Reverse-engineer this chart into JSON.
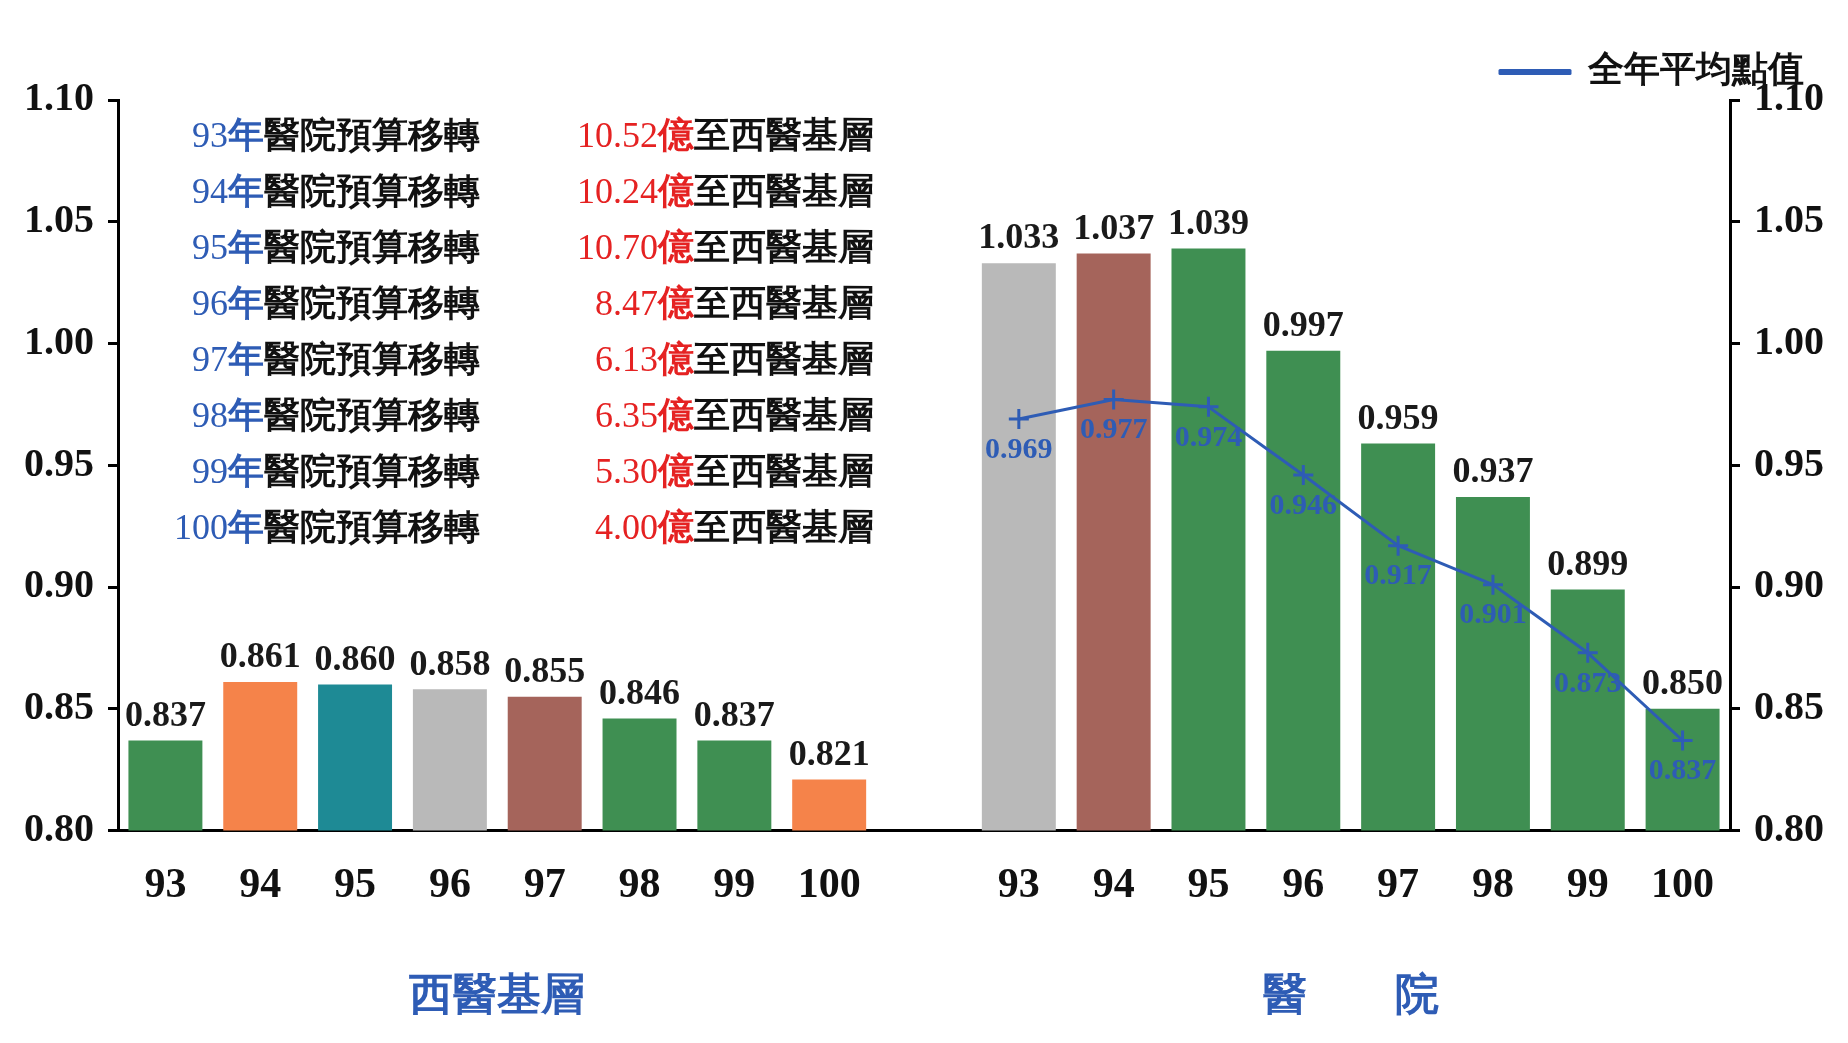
{
  "chart_data": {
    "type": "bar",
    "categories": [
      "93",
      "94",
      "95",
      "96",
      "97",
      "98",
      "99",
      "100",
      null,
      "93",
      "94",
      "95",
      "96",
      "97",
      "98",
      "99",
      "100"
    ],
    "series": [
      {
        "value_labels": [
          "0.837",
          "0.861",
          "0.860",
          "0.858",
          "0.855",
          "0.846",
          "0.837",
          "0.821",
          null,
          "1.033",
          "1.037",
          "1.039",
          "0.997",
          "0.959",
          "0.937",
          "0.899",
          "0.850"
        ],
        "colors": [
          "#3f8f52",
          "#f5834a",
          "#1e8a95",
          "#b9b9b9",
          "#a5645b",
          "#3f8f52",
          "#3f8f52",
          "#f5834a",
          null,
          "#b9b9b9",
          "#a5645b",
          "#3f8f52",
          "#3f8f52",
          "#3f8f52",
          "#3f8f52",
          "#3f8f52",
          "#3f8f52"
        ],
        "values": [
          0.837,
          0.861,
          0.86,
          0.858,
          0.855,
          0.846,
          0.837,
          0.821,
          null,
          1.033,
          1.037,
          1.039,
          0.997,
          0.959,
          0.937,
          0.899,
          0.85
        ]
      },
      {
        "type": "line",
        "name": "全年平均點值",
        "color": "#2e5cb5",
        "value_labels": [
          null,
          null,
          null,
          null,
          null,
          null,
          null,
          null,
          null,
          "0.969",
          "0.977",
          "0.974",
          "0.946",
          "0.917",
          "0.901",
          "0.873",
          "0.837"
        ],
        "values": [
          null,
          null,
          null,
          null,
          null,
          null,
          null,
          null,
          null,
          0.969,
          0.977,
          0.974,
          0.946,
          0.917,
          0.901,
          0.873,
          0.837
        ]
      }
    ],
    "ylim": [
      0.8,
      1.1
    ],
    "yticks": [
      {
        "value": 0.8,
        "label": "0.80"
      },
      0.85,
      {
        "value": 0.9,
        "label": "0.90"
      },
      0.95,
      {
        "value": 1,
        "label": "1.00"
      },
      1.05,
      {
        "value": 1.1,
        "label": "1.10"
      }
    ],
    "y2lim": [
      0.8,
      1.1
    ],
    "y2ticks": [
      {
        "value": 0.8,
        "label": "0.80"
      },
      0.85,
      {
        "value": 0.9,
        "label": "0.90"
      },
      0.95,
      {
        "value": 1,
        "label": "1.00"
      },
      1.05,
      {
        "value": 1.1,
        "label": "1.10"
      }
    ],
    "marker": "cross",
    "legend": "top right",
    "grid": false,
    "annotations": [
      {
        "text": "93年醫院預算移轉 10.52億至西醫基層"
      },
      {
        "text": "94年醫院預算移轉 10.24億至西醫基層"
      },
      {
        "text": "95年醫院預算移轉 10.70億至西醫基層"
      },
      {
        "text": "96年醫院預算移轉 8.47億至西醫基層"
      },
      {
        "text": "97年醫院預算移轉 6.13億至西醫基層"
      },
      {
        "text": "98年醫院預算移轉 6.35億至西醫基層"
      },
      {
        "text": "99年醫院預算移轉 5.30億至西醫基層"
      },
      {
        "text": "100年醫院預算移轉 4.00億至西醫基層"
      },
      {
        "text": "西醫基層"
      },
      {
        "text": "醫　　院"
      }
    ]
  }
}
